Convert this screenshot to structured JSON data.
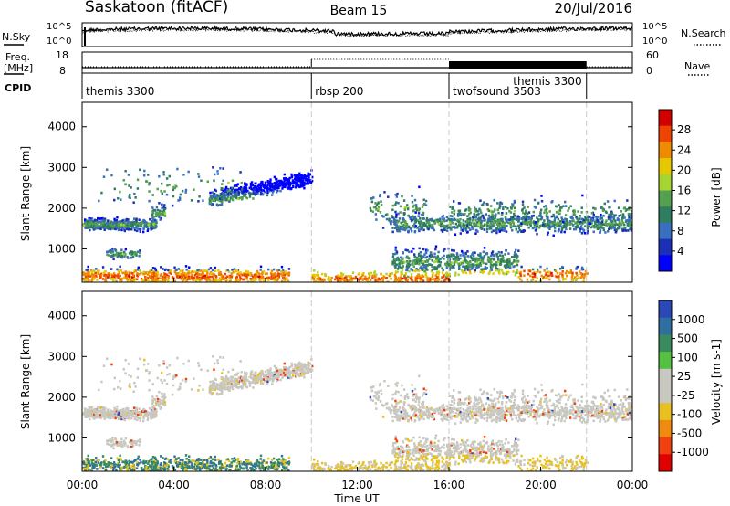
{
  "header": {
    "site": "Saskatoon (fitACF)",
    "beam": "Beam 15",
    "date": "20/Jul/2016"
  },
  "chart_data": [
    {
      "type": "line",
      "panel": "noise",
      "left_label": "N.Sky",
      "right_label": "N.Search",
      "left_ticks": [
        "10^5",
        "10^0"
      ],
      "right_ticks": [
        "10^5",
        "10^0"
      ],
      "series": [
        {
          "name": "N.Sky",
          "style": "solid",
          "color": "#000000"
        },
        {
          "name": "N.Search",
          "style": "dotted",
          "color": "#000000"
        }
      ]
    },
    {
      "type": "line",
      "panel": "frequency-nave",
      "left_label_lines": [
        "Freq.",
        "[MHz]"
      ],
      "right_label": "Nave",
      "left_ticks": [
        "18",
        "8"
      ],
      "right_ticks": [
        "60",
        "0"
      ],
      "series": [
        {
          "name": "Freq.",
          "style": "solid",
          "color": "#000000"
        },
        {
          "name": "Nave",
          "style": "dotted",
          "color": "#000000"
        }
      ]
    },
    {
      "type": "table",
      "panel": "cpid",
      "label": "CPID",
      "segments": [
        {
          "start": 0,
          "end": 10,
          "label": "themis 3300"
        },
        {
          "start": 10,
          "end": 16,
          "label": "rbsp 200"
        },
        {
          "start": 16,
          "end": 22,
          "label": "twofsound 3503"
        },
        {
          "start": 22,
          "end": 24,
          "label": ""
        }
      ],
      "overlay_labels": [
        {
          "x": 18,
          "label": "themis 3300"
        }
      ]
    },
    {
      "type": "heatmap",
      "panel": "power",
      "ylabel": "Slant Range [km]",
      "ylim": [
        180,
        4600
      ],
      "yticks": [
        1000,
        2000,
        3000,
        4000
      ],
      "xlim": [
        0,
        24
      ],
      "colorbar_label": "Power [dB]",
      "colorbar_ticks": [
        "28",
        "24",
        "20",
        "16",
        "12",
        "8",
        "4"
      ],
      "colorbar_colors": [
        "#d40000",
        "#ee4400",
        "#f08a00",
        "#e6c800",
        "#a6d430",
        "#55a050",
        "#2e7d60",
        "#3a6fc0",
        "#1a30b8",
        "#0000ff"
      ]
    },
    {
      "type": "heatmap",
      "panel": "velocity",
      "ylabel": "Slant Range [km]",
      "ylim": [
        180,
        4600
      ],
      "yticks": [
        1000,
        2000,
        3000,
        4000
      ],
      "xlim": [
        0,
        24
      ],
      "colorbar_label": "Velocity [m s-1]",
      "colorbar_ticks": [
        "1000",
        "500",
        "100",
        "25",
        "-25",
        "-100",
        "-500",
        "-1000"
      ],
      "colorbar_colors": [
        "#2a48b8",
        "#2e6fa0",
        "#3a8a60",
        "#56c040",
        "#c8c8c0",
        "#c8c8c0",
        "#e8c020",
        "#f08a10",
        "#f04010",
        "#e00000"
      ],
      "xlabel": "Time UT",
      "xticks": [
        "00:00",
        "04:00",
        "08:00",
        "12:00",
        "16:00",
        "20:00",
        "00:00"
      ]
    }
  ],
  "mode_change_times": [
    10,
    16,
    22
  ]
}
